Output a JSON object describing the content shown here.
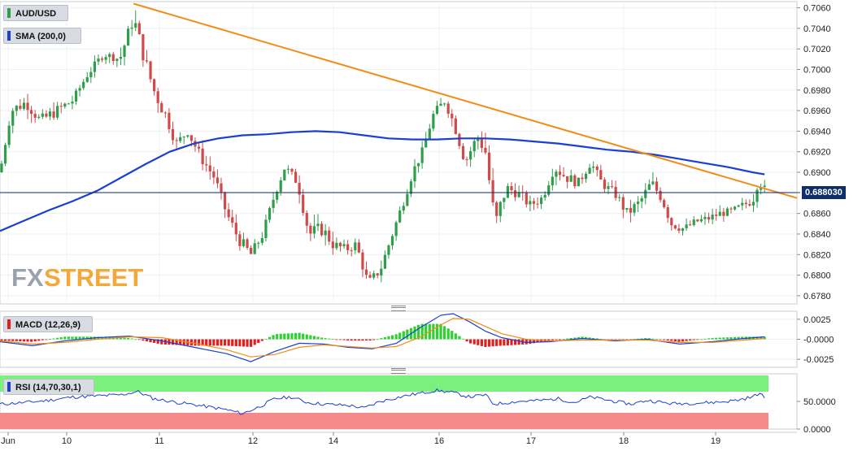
{
  "panels": {
    "main": {
      "symbol_label": "AUD/USD",
      "sma_label": "SMA (200,0)",
      "current_price_label": "0.688030",
      "y_ticks": [
        "0.7060",
        "0.7040",
        "0.7020",
        "0.7000",
        "0.6980",
        "0.6960",
        "0.6940",
        "0.6920",
        "0.6900",
        "0.6880",
        "0.6860",
        "0.6840",
        "0.6820",
        "0.6800",
        "0.6780"
      ],
      "watermark_fx": "FX",
      "watermark_street": "STREET"
    },
    "macd": {
      "label": "MACD (12,26,9)",
      "y_ticks": [
        "0.0025",
        "-0.0000",
        "-0.0025"
      ]
    },
    "rsi": {
      "label": "RSI (14,70,30,1)",
      "y_ticks": [
        "50.0000",
        "0.0000"
      ]
    }
  },
  "x_axis": {
    "ticks": [
      {
        "label": "Jun"
      },
      {
        "label": "10"
      },
      {
        "label": "11"
      },
      {
        "label": "12"
      },
      {
        "label": "14"
      },
      {
        "label": "16"
      },
      {
        "label": "17"
      },
      {
        "label": "18"
      },
      {
        "label": "19"
      }
    ]
  },
  "colors": {
    "bull": "#2e9e4a",
    "bear": "#d04a4a",
    "sma": "#1b3fd1",
    "trendline": "#f28c18",
    "price_line": "#0e2f6b",
    "macd_line": "#1b3fd1",
    "signal_line": "#f28c18",
    "hist_pos": "#2fd02f",
    "hist_neg": "#e01f1f",
    "rsi_line": "#1b3fd1",
    "rsi_over": "#7cf07c",
    "rsi_under": "#f58a8a",
    "watermark_fx": "#9aa3ad",
    "watermark_street": "#f4a83a"
  },
  "chart_data": [
    {
      "type": "candlestick",
      "name": "AUD/USD",
      "ylim": [
        0.6772,
        0.7066
      ],
      "current_price": 0.68803,
      "ohlc_points": [
        [
          0,
          0.69,
          0.69,
          0.69
        ],
        [
          14,
          0.696,
          0.6968,
          0.693
        ],
        [
          32,
          0.6968,
          0.6972,
          0.6938
        ],
        [
          50,
          0.695,
          0.6965,
          0.693
        ],
        [
          70,
          0.696,
          0.6965,
          0.6928
        ],
        [
          90,
          0.697,
          0.6982,
          0.6955
        ],
        [
          108,
          0.6995,
          0.7002,
          0.6978
        ],
        [
          128,
          0.7015,
          0.7022,
          0.6998
        ],
        [
          148,
          0.701,
          0.7018,
          0.6996
        ],
        [
          165,
          0.705,
          0.7062,
          0.7005
        ],
        [
          175,
          0.702,
          0.704,
          0.699
        ],
        [
          190,
          0.698,
          0.6995,
          0.6955
        ],
        [
          205,
          0.6955,
          0.697,
          0.692
        ],
        [
          218,
          0.6928,
          0.694,
          0.6918
        ],
        [
          232,
          0.694,
          0.6955,
          0.692
        ],
        [
          248,
          0.6915,
          0.6928,
          0.6895
        ],
        [
          265,
          0.6895,
          0.6905,
          0.687
        ],
        [
          280,
          0.686,
          0.687,
          0.684
        ],
        [
          295,
          0.6835,
          0.686,
          0.682
        ],
        [
          310,
          0.682,
          0.6832,
          0.68
        ],
        [
          325,
          0.684,
          0.685,
          0.6822
        ],
        [
          340,
          0.688,
          0.6895,
          0.686
        ],
        [
          352,
          0.6905,
          0.6912,
          0.689
        ],
        [
          368,
          0.689,
          0.6905,
          0.687
        ],
        [
          382,
          0.684,
          0.687,
          0.683
        ],
        [
          398,
          0.6845,
          0.687,
          0.6822
        ],
        [
          412,
          0.683,
          0.685,
          0.682
        ],
        [
          428,
          0.6825,
          0.684,
          0.6815
        ],
        [
          440,
          0.683,
          0.6845,
          0.6815
        ],
        [
          455,
          0.6792,
          0.681,
          0.6778
        ],
        [
          470,
          0.6805,
          0.682,
          0.6795
        ],
        [
          485,
          0.684,
          0.686,
          0.6825
        ],
        [
          498,
          0.687,
          0.688,
          0.6855
        ],
        [
          510,
          0.69,
          0.691,
          0.688
        ],
        [
          522,
          0.692,
          0.693,
          0.6905
        ],
        [
          535,
          0.6955,
          0.6962,
          0.693
        ],
        [
          550,
          0.697,
          0.6978,
          0.695
        ],
        [
          562,
          0.6945,
          0.696,
          0.6925
        ],
        [
          575,
          0.691,
          0.6925,
          0.6895
        ],
        [
          590,
          0.6935,
          0.695,
          0.692
        ],
        [
          600,
          0.692,
          0.6958,
          0.691
        ],
        [
          612,
          0.6848,
          0.6915,
          0.6835
        ],
        [
          625,
          0.6885,
          0.6905,
          0.687
        ],
        [
          640,
          0.688,
          0.6895,
          0.6865
        ],
        [
          655,
          0.6868,
          0.6885,
          0.6855
        ],
        [
          670,
          0.6875,
          0.689,
          0.6862
        ],
        [
          685,
          0.6905,
          0.6922,
          0.689
        ],
        [
          700,
          0.6895,
          0.6915,
          0.6882
        ],
        [
          715,
          0.689,
          0.6905,
          0.6875
        ],
        [
          730,
          0.691,
          0.6918,
          0.689
        ],
        [
          745,
          0.6888,
          0.69,
          0.6875
        ],
        [
          760,
          0.688,
          0.6895,
          0.687
        ],
        [
          775,
          0.686,
          0.688,
          0.6838
        ],
        [
          790,
          0.687,
          0.6885,
          0.6855
        ],
        [
          805,
          0.689,
          0.6905,
          0.6875
        ],
        [
          818,
          0.6875,
          0.69,
          0.686
        ],
        [
          830,
          0.685,
          0.687,
          0.6838
        ],
        [
          845,
          0.6845,
          0.686,
          0.6835
        ],
        [
          860,
          0.6852,
          0.6862,
          0.684
        ],
        [
          875,
          0.6855,
          0.6868,
          0.6842
        ],
        [
          890,
          0.686,
          0.687,
          0.6848
        ],
        [
          905,
          0.6862,
          0.6872,
          0.685
        ],
        [
          918,
          0.6868,
          0.6878,
          0.6855
        ],
        [
          930,
          0.6872,
          0.6882,
          0.6858
        ],
        [
          938,
          0.6895,
          0.691,
          0.6865
        ],
        [
          945,
          0.6882,
          0.6905,
          0.6875
        ]
      ]
    },
    {
      "type": "line",
      "name": "SMA (200,0)",
      "points": [
        [
          0,
          0.6843
        ],
        [
          30,
          0.6853
        ],
        [
          60,
          0.6863
        ],
        [
          90,
          0.6872
        ],
        [
          120,
          0.6882
        ],
        [
          150,
          0.6895
        ],
        [
          180,
          0.6908
        ],
        [
          210,
          0.692
        ],
        [
          240,
          0.6928
        ],
        [
          270,
          0.6933
        ],
        [
          300,
          0.6936
        ],
        [
          330,
          0.6937
        ],
        [
          360,
          0.6939
        ],
        [
          390,
          0.694
        ],
        [
          420,
          0.6939
        ],
        [
          450,
          0.6936
        ],
        [
          480,
          0.6933
        ],
        [
          510,
          0.6932
        ],
        [
          540,
          0.6932
        ],
        [
          570,
          0.6933
        ],
        [
          600,
          0.6933
        ],
        [
          630,
          0.6932
        ],
        [
          660,
          0.693
        ],
        [
          690,
          0.6928
        ],
        [
          720,
          0.6925
        ],
        [
          750,
          0.6922
        ],
        [
          780,
          0.692
        ],
        [
          810,
          0.6917
        ],
        [
          840,
          0.6913
        ],
        [
          870,
          0.6909
        ],
        [
          900,
          0.6905
        ],
        [
          930,
          0.69
        ],
        [
          945,
          0.6898
        ]
      ]
    },
    {
      "type": "line",
      "name": "trendline",
      "points": [
        [
          165,
          0.7064
        ],
        [
          985,
          0.6875
        ]
      ]
    },
    {
      "type": "macd",
      "label": "MACD (12,26,9)",
      "ylim": [
        -0.0035,
        0.0035
      ],
      "macd_line": [
        [
          0,
          -0.0003
        ],
        [
          40,
          -0.0008
        ],
        [
          80,
          -0.0002
        ],
        [
          120,
          0.0002
        ],
        [
          160,
          0.0004
        ],
        [
          200,
          -0.0002
        ],
        [
          240,
          -0.001
        ],
        [
          280,
          -0.0018
        ],
        [
          310,
          -0.0028
        ],
        [
          340,
          -0.0015
        ],
        [
          370,
          -0.0005
        ],
        [
          400,
          -0.0006
        ],
        [
          430,
          -0.001
        ],
        [
          460,
          -0.0012
        ],
        [
          490,
          -0.0005
        ],
        [
          520,
          0.0015
        ],
        [
          545,
          0.003
        ],
        [
          560,
          0.0032
        ],
        [
          580,
          0.0022
        ],
        [
          600,
          0.001
        ],
        [
          620,
          0.0002
        ],
        [
          650,
          -0.0004
        ],
        [
          680,
          -0.0003
        ],
        [
          720,
          0.0001
        ],
        [
          760,
          -0.0002
        ],
        [
          800,
          0.0
        ],
        [
          840,
          -0.0006
        ],
        [
          880,
          -0.0003
        ],
        [
          920,
          0.0001
        ],
        [
          945,
          0.0003
        ]
      ],
      "signal_line": [
        [
          0,
          -0.0002
        ],
        [
          40,
          -0.0006
        ],
        [
          80,
          -0.0004
        ],
        [
          120,
          0.0
        ],
        [
          160,
          0.0003
        ],
        [
          200,
          0.0002
        ],
        [
          240,
          -0.0005
        ],
        [
          280,
          -0.0013
        ],
        [
          310,
          -0.0022
        ],
        [
          340,
          -0.0019
        ],
        [
          370,
          -0.001
        ],
        [
          400,
          -0.0007
        ],
        [
          430,
          -0.0009
        ],
        [
          460,
          -0.0011
        ],
        [
          490,
          -0.0009
        ],
        [
          520,
          0.0003
        ],
        [
          545,
          0.0018
        ],
        [
          560,
          0.0026
        ],
        [
          580,
          0.0025
        ],
        [
          600,
          0.0016
        ],
        [
          620,
          0.0007
        ],
        [
          650,
          0.0
        ],
        [
          680,
          -0.0002
        ],
        [
          720,
          -0.0001
        ],
        [
          760,
          -0.0001
        ],
        [
          800,
          -0.0001
        ],
        [
          840,
          -0.0004
        ],
        [
          880,
          -0.0004
        ],
        [
          920,
          -0.0001
        ],
        [
          945,
          0.0001
        ]
      ]
    },
    {
      "type": "line",
      "name": "RSI (14,70,30,1)",
      "ylim": [
        0,
        100
      ],
      "overbought": 70,
      "oversold": 30,
      "values": [
        [
          0,
          45
        ],
        [
          30,
          48
        ],
        [
          60,
          52
        ],
        [
          90,
          58
        ],
        [
          120,
          60
        ],
        [
          150,
          62
        ],
        [
          170,
          68
        ],
        [
          190,
          55
        ],
        [
          220,
          48
        ],
        [
          250,
          42
        ],
        [
          280,
          35
        ],
        [
          300,
          28
        ],
        [
          320,
          40
        ],
        [
          340,
          55
        ],
        [
          360,
          58
        ],
        [
          380,
          48
        ],
        [
          400,
          45
        ],
        [
          430,
          43
        ],
        [
          450,
          38
        ],
        [
          470,
          50
        ],
        [
          500,
          60
        ],
        [
          520,
          65
        ],
        [
          540,
          70
        ],
        [
          560,
          66
        ],
        [
          580,
          58
        ],
        [
          600,
          62
        ],
        [
          610,
          45
        ],
        [
          640,
          50
        ],
        [
          670,
          52
        ],
        [
          690,
          55
        ],
        [
          710,
          48
        ],
        [
          730,
          58
        ],
        [
          760,
          50
        ],
        [
          780,
          45
        ],
        [
          800,
          52
        ],
        [
          830,
          46
        ],
        [
          860,
          47
        ],
        [
          890,
          49
        ],
        [
          910,
          52
        ],
        [
          930,
          58
        ],
        [
          938,
          65
        ],
        [
          945,
          57
        ]
      ]
    }
  ]
}
